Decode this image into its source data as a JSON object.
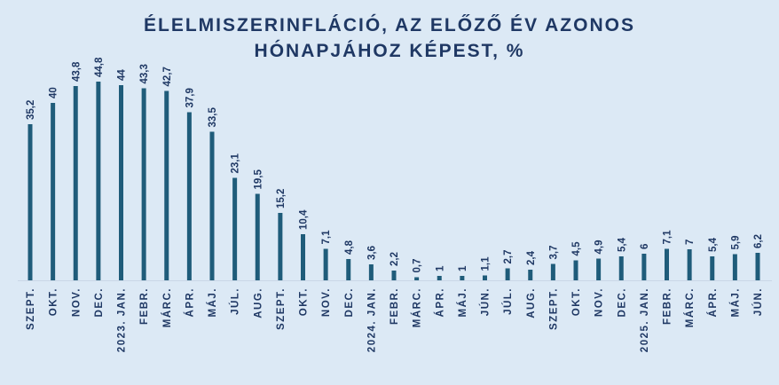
{
  "chart_data": {
    "type": "bar",
    "title_line1": "ÉLELMISZERINFLÁCIÓ, AZ ELŐZŐ ÉV AZONOS",
    "title_line2": "HÓNAPJÁHOZ KÉPEST, %",
    "categories": [
      "SZEPT.",
      "OKT.",
      "NOV.",
      "DEC.",
      "2023. JAN.",
      "FEBR.",
      "MÁRC.",
      "ÁPR.",
      "MÁJ.",
      "JÚL.",
      "AUG.",
      "SZEPT.",
      "OKT.",
      "NOV.",
      "DEC.",
      "2024. JAN.",
      "FEBR.",
      "MÁRC.",
      "ÁPR.",
      "MÁJ.",
      "JÚN.",
      "JÚL.",
      "AUG.",
      "SZEPT.",
      "OKT.",
      "NOV.",
      "DEC.",
      "2025. JAN.",
      "FEBR.",
      "MÁRC.",
      "ÁPR.",
      "MÁJ.",
      "JÚN."
    ],
    "values": [
      35.2,
      40,
      43.8,
      44.8,
      44,
      43.3,
      42.7,
      37.9,
      33.5,
      23.1,
      19.5,
      15.2,
      10.4,
      7.1,
      4.8,
      3.6,
      2.2,
      0.7,
      1,
      1,
      1.1,
      2.7,
      2.4,
      3.7,
      4.5,
      4.9,
      5.4,
      6,
      7.1,
      7,
      5.4,
      5.9,
      6.2
    ],
    "value_labels": [
      "35,2",
      "40",
      "43,8",
      "44,8",
      "44",
      "43,3",
      "42,7",
      "37,9",
      "33,5",
      "23,1",
      "19,5",
      "15,2",
      "10,4",
      "7,1",
      "4,8",
      "3,6",
      "2,2",
      "0,7",
      "1",
      "1",
      "1,1",
      "2,7",
      "2,4",
      "3,7",
      "4,5",
      "4,9",
      "5,4",
      "6",
      "7,1",
      "7",
      "5,4",
      "5,9",
      "6,2"
    ],
    "ylim": [
      0,
      50
    ],
    "grid": false,
    "legend": "none",
    "bar_color": "#1f5c7a",
    "text_color": "#1f3864",
    "background": "#dce9f5"
  }
}
